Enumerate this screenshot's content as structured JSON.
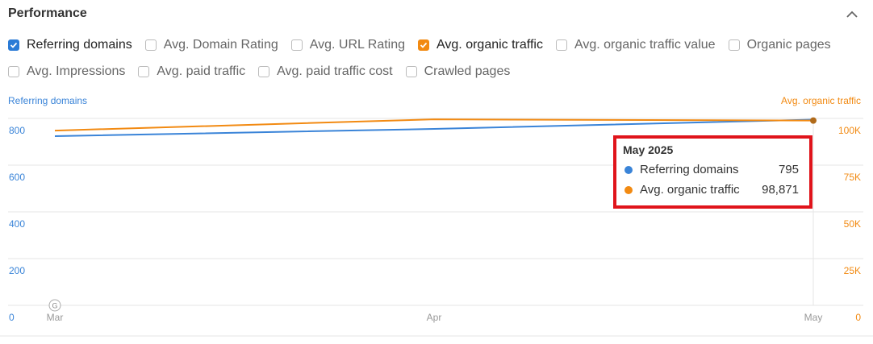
{
  "header": {
    "title": "Performance"
  },
  "filters": [
    [
      {
        "label": "Referring domains",
        "checked": true,
        "color": "#2b7bd6"
      },
      {
        "label": "Avg. Domain Rating",
        "checked": false
      },
      {
        "label": "Avg. URL Rating",
        "checked": false
      },
      {
        "label": "Avg. organic traffic",
        "checked": true,
        "color": "#f28a12"
      },
      {
        "label": "Avg. organic traffic value",
        "checked": false
      },
      {
        "label": "Organic pages",
        "checked": false
      }
    ],
    [
      {
        "label": "Avg. Impressions",
        "checked": false
      },
      {
        "label": "Avg. paid traffic",
        "checked": false
      },
      {
        "label": "Avg. paid traffic cost",
        "checked": false
      },
      {
        "label": "Crawled pages",
        "checked": false
      }
    ]
  ],
  "chart_data": {
    "type": "line",
    "y_label": "Referring domains",
    "y2_label": "Avg. organic traffic",
    "categories": [
      "Mar",
      "Apr",
      "May"
    ],
    "series": [
      {
        "name": "Referring domains",
        "color": "#3a84d8",
        "values": [
          724,
          755,
          795
        ]
      },
      {
        "name": "Avg. organic traffic",
        "color": "#f28a12",
        "axis": "y2",
        "values": [
          93500,
          99500,
          98871
        ],
        "value_labels": [
          null,
          null,
          "98,871"
        ]
      }
    ],
    "ylim": [
      0,
      800
    ],
    "yticks": [
      0,
      200,
      400,
      600,
      800
    ],
    "y2lim": [
      0,
      100000
    ],
    "y2ticks": [
      {
        "value": 0,
        "label": "0"
      },
      {
        "value": 25000,
        "label": "25K"
      },
      {
        "value": 50000,
        "label": "50K"
      },
      {
        "value": 75000,
        "label": "75K"
      },
      {
        "value": 100000,
        "label": "100K"
      }
    ],
    "grid": true,
    "tooltip": {
      "title": "May 2025"
    }
  }
}
